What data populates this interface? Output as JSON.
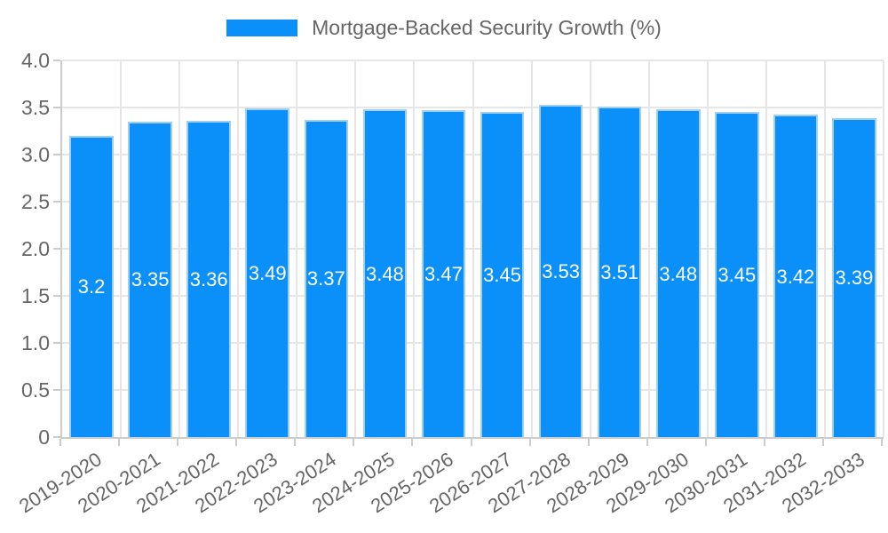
{
  "legend": {
    "label": "Mortgage-Backed Security Growth (%)"
  },
  "chart_data": {
    "type": "bar",
    "title": "Mortgage-Backed Security Growth (%)",
    "categories": [
      "2019-2020",
      "2020-2021",
      "2021-2022",
      "2022-2023",
      "2023-2024",
      "2024-2025",
      "2025-2026",
      "2026-2027",
      "2027-2028",
      "2028-2029",
      "2029-2030",
      "2030-2031",
      "2031-2032",
      "2032-2033"
    ],
    "values": [
      3.2,
      3.35,
      3.36,
      3.49,
      3.37,
      3.48,
      3.47,
      3.45,
      3.53,
      3.51,
      3.48,
      3.45,
      3.42,
      3.39
    ],
    "bar_labels": [
      "3.2",
      "3.35",
      "3.36",
      "3.49",
      "3.37",
      "3.48",
      "3.47",
      "3.45",
      "3.53",
      "3.51",
      "3.48",
      "3.45",
      "3.42",
      "3.39"
    ],
    "xlabel": "",
    "ylabel": "",
    "ylim": [
      0,
      4.0
    ],
    "ytick_labels": [
      "4.0",
      "3.5",
      "3.0",
      "2.5",
      "2.0",
      "1.5",
      "1.0",
      "0.5",
      "0"
    ],
    "ytick_values": [
      4.0,
      3.5,
      3.0,
      2.5,
      2.0,
      1.5,
      1.0,
      0.5,
      0
    ],
    "grid": true,
    "legend_position": "top",
    "colors": {
      "bar_fill": "#0a90f8",
      "bar_border": "#9fcef7",
      "value_label": "#ffffff",
      "axis_text": "#666666",
      "gridline": "#e6e6e6",
      "axis_line": "#cccccc",
      "background": "#ffffff"
    }
  }
}
